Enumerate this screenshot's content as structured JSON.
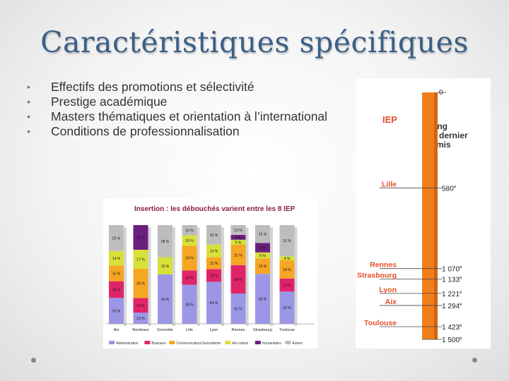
{
  "slide": {
    "title": "Caractéristiques spécifiques",
    "bullets": [
      "Effectifs des promotions  et sélectivité",
      "Prestige académique",
      "Masters thématiques et orientation à l’international",
      "Conditions de professionnalisation"
    ]
  },
  "chart_data": [
    {
      "type": "bar",
      "stacked": true,
      "title": "Insertion : les débouchés varient entre les 8 IEP",
      "categories": [
        "Aix",
        "Bordeaux",
        "Grenoble",
        "Lille",
        "Lyon",
        "Rennes",
        "Strasbourg",
        "Toulouse"
      ],
      "series": [
        {
          "name": "Administration",
          "color": "#9b96e6",
          "values": [
            25,
            10,
            43,
            38,
            43,
            31,
            42,
            32
          ]
        },
        {
          "name": "Business",
          "color": "#e0246a",
          "values": [
            16,
            13,
            0,
            14,
            13,
            29,
            0,
            13
          ]
        },
        {
          "name": "Communication/Journalisme",
          "color": "#f5a623",
          "values": [
            15,
            26,
            0,
            24,
            12,
            21,
            13,
            18
          ]
        },
        {
          "name": "Art-culture",
          "color": "#d8e03a",
          "values": [
            14,
            17,
            15,
            10,
            13,
            5,
            5,
            4
          ]
        },
        {
          "name": "Humanitaire",
          "color": "#6b1f7e",
          "values": [
            0,
            22,
            0,
            0,
            0,
            5,
            8,
            0
          ]
        },
        {
          "name": "Autres",
          "color": "#bdbdbd",
          "values": [
            25,
            0,
            28,
            10,
            20,
            10,
            15,
            31
          ]
        }
      ],
      "ylim": [
        0,
        100
      ]
    },
    {
      "type": "bar",
      "title": "",
      "legend_title": [
        "Rang",
        "du dernier",
        "admis"
      ],
      "top_label": "IEP",
      "zero_label": "0",
      "axis": {
        "min": 0,
        "max": 1500
      },
      "entries": [
        {
          "label": "Lille",
          "value": 580,
          "text": "580",
          "sup": "e"
        },
        {
          "label": "Rennes",
          "value": 1070,
          "text": "1 070",
          "sup": "e"
        },
        {
          "label": "Strasbourg",
          "value": 1133,
          "text": "1 133",
          "sup": "e"
        },
        {
          "label": "Lyon",
          "value": 1221,
          "text": "1 221",
          "sup": "e"
        },
        {
          "label": "Aix",
          "value": 1294,
          "text": "1 294",
          "sup": "e"
        },
        {
          "label": "Toulouse",
          "value": 1423,
          "text": "1 423",
          "sup": "e"
        },
        {
          "label": "",
          "value": 1500,
          "text": "1 500",
          "sup": "e"
        }
      ]
    }
  ]
}
